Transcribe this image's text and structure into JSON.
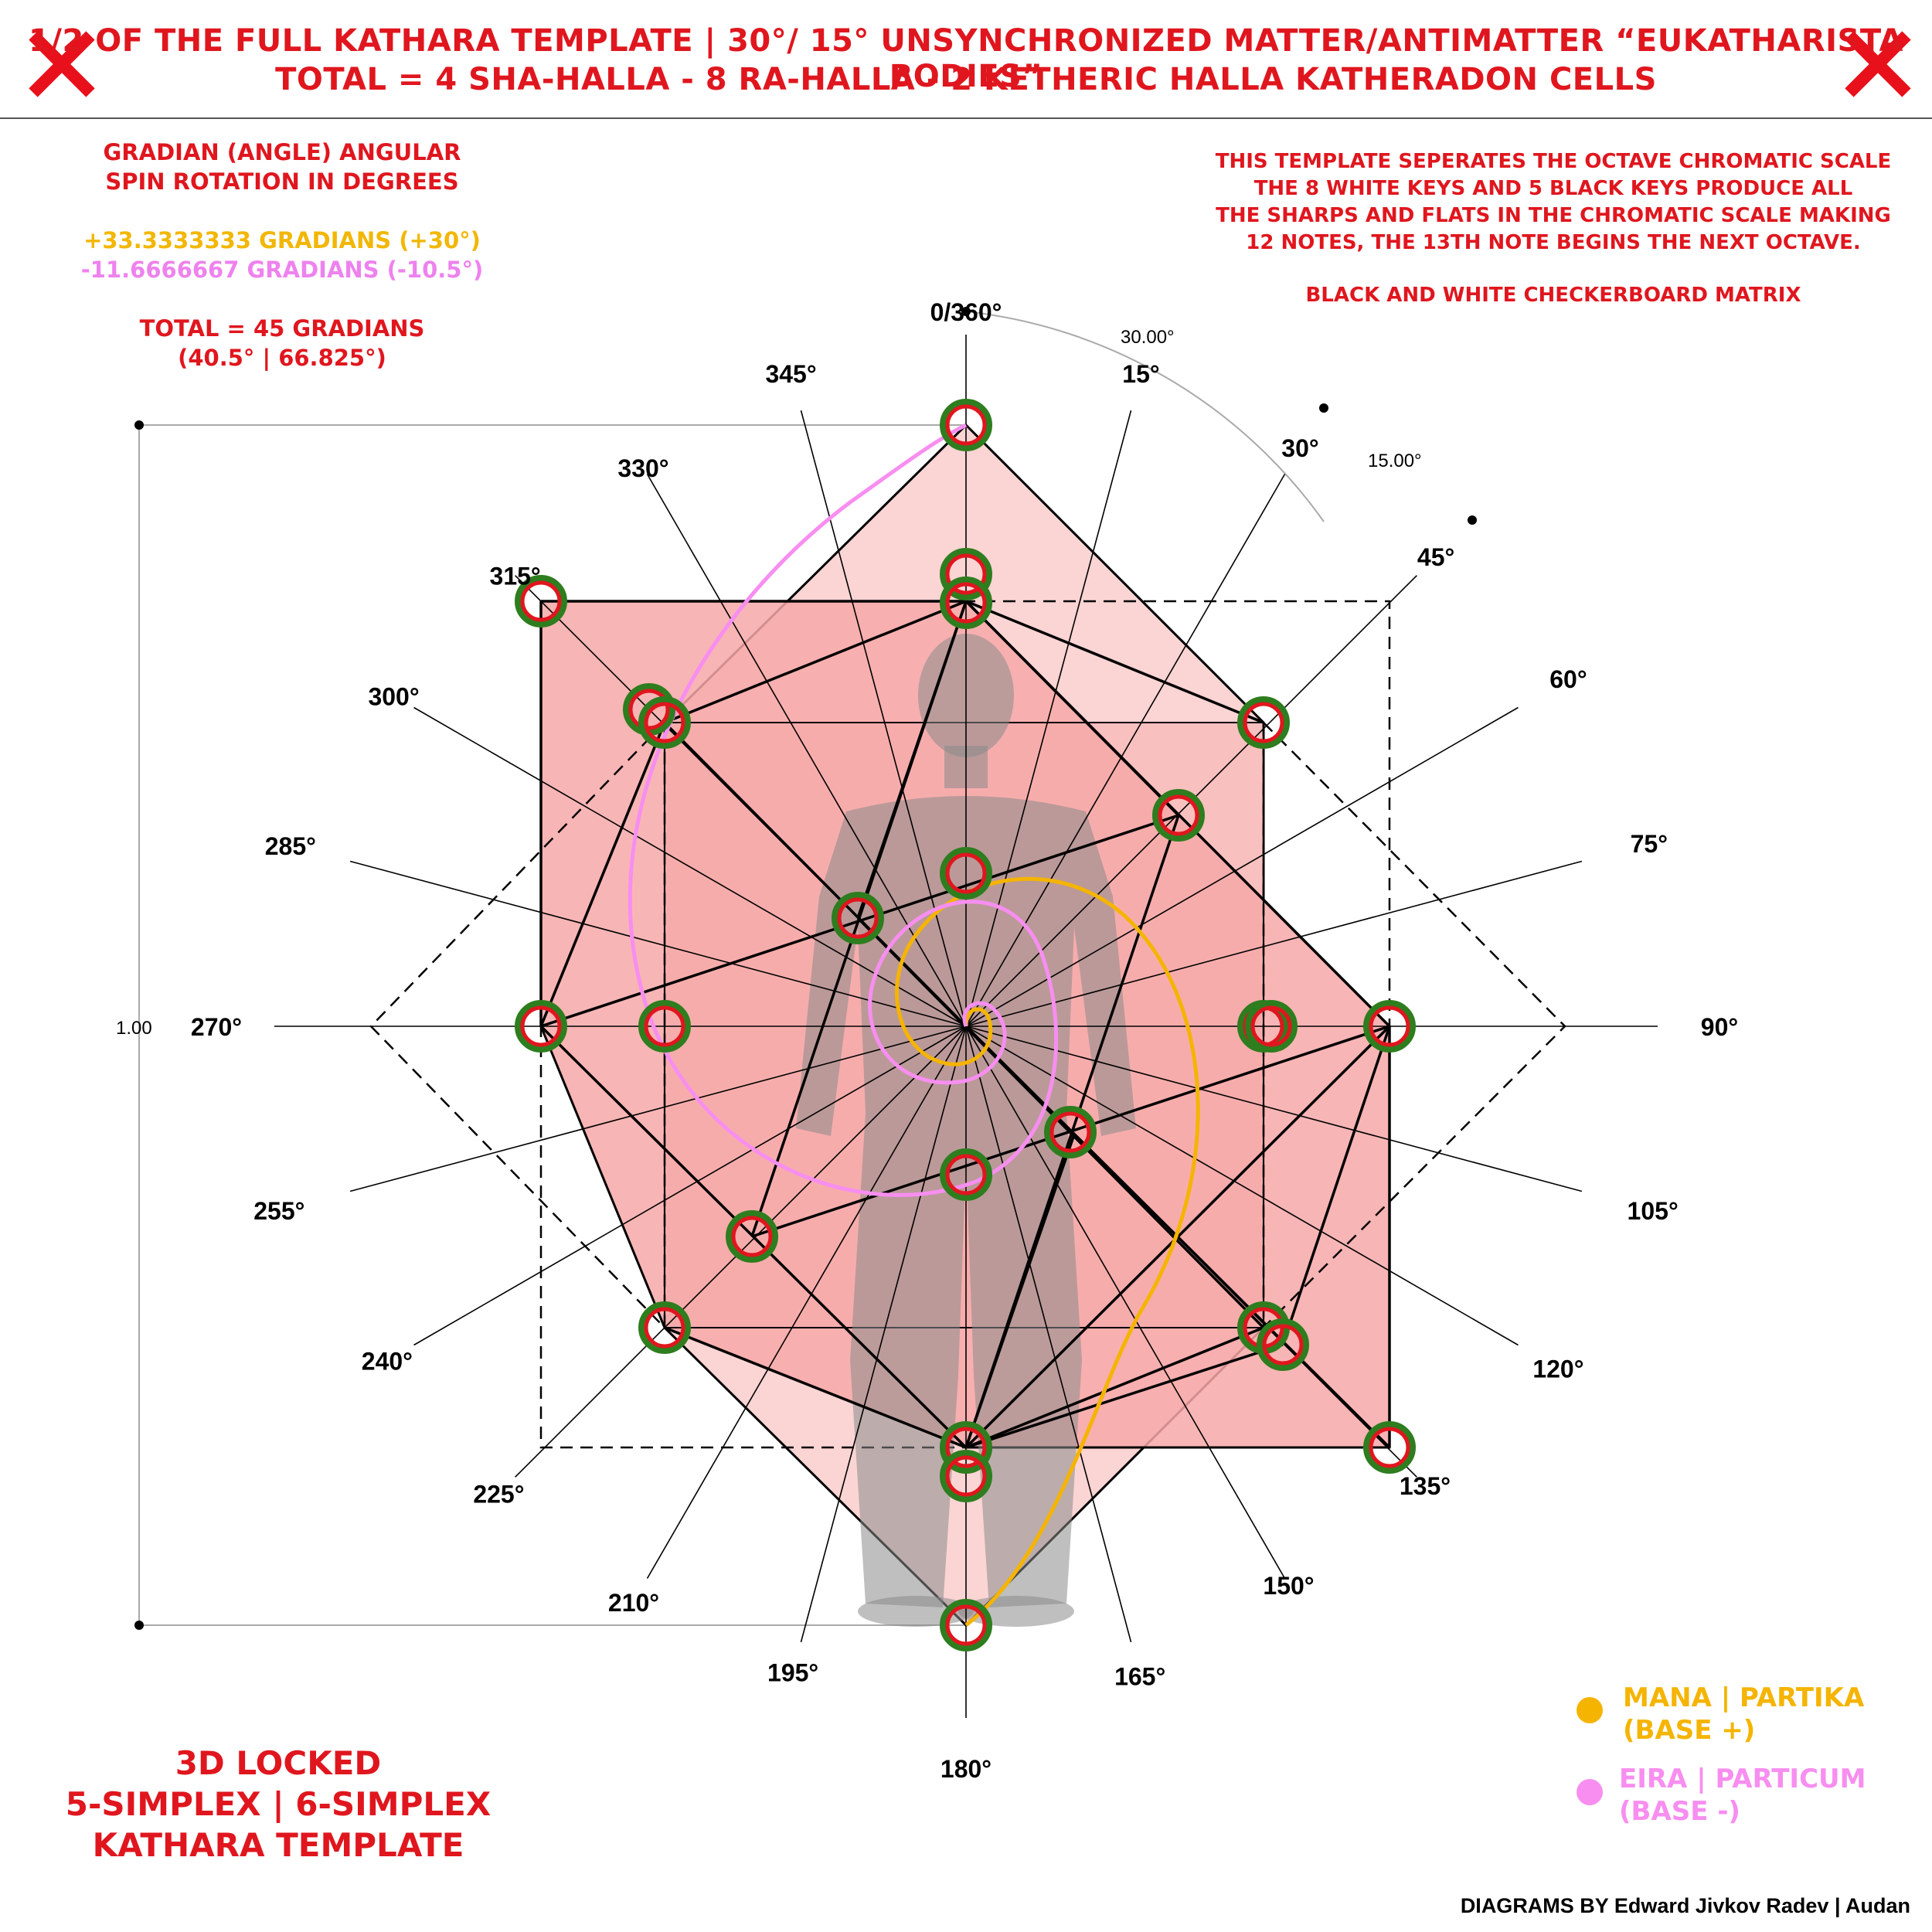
{
  "header": {
    "line1": "1/2 OF THE FULL KATHARA TEMPLATE | 30°/ 15° UNSYNCHRONIZED MATTER/ANTIMATTER “EUKATHARISTA BODIES”",
    "line2": "TOTAL = 4 SHA-HALLA - 8 RA-HALLA - 2 KETHERIC HALLA KATHERADON CELLS"
  },
  "left_note": {
    "line1": "GRADIAN (ANGLE) ANGULAR",
    "line2": "SPIN ROTATION IN DEGREES",
    "pos": "+33.3333333 GRADIANS (+30°)",
    "neg": "-11.6666667 GRADIANS (-10.5°)",
    "total1": "TOTAL = 45 GRADIANS",
    "total2": "(40.5° | 66.825°)"
  },
  "right_note": {
    "line1": "THIS TEMPLATE SEPERATES THE OCTAVE CHROMATIC SCALE",
    "line2": "THE 8 WHITE KEYS AND 5 BLACK KEYS PRODUCE ALL",
    "line3": "THE SHARPS AND FLATS IN THE CHROMATIC SCALE MAKING",
    "line4": "12 NOTES, THE 13TH NOTE BEGINS THE NEXT OCTAVE.",
    "line5": "BLACK AND WHITE CHECKERBOARD MATRIX"
  },
  "angle_labels": [
    "0/360°",
    "15°",
    "30°",
    "45°",
    "60°",
    "75°",
    "90°",
    "105°",
    "120°",
    "135°",
    "150°",
    "165°",
    "180°",
    "195°",
    "210°",
    "225°",
    "240°",
    "255°",
    "270°",
    "285°",
    "300°",
    "315°",
    "330°",
    "345°"
  ],
  "arc_labels": {
    "a30": "30.00°",
    "a15": "15.00°"
  },
  "scale_label": "1.00",
  "bottom_left": {
    "line1": "3D LOCKED",
    "line2": "5-SIMPLEX | 6-SIMPLEX",
    "line3": "KATHARA TEMPLATE"
  },
  "legend": {
    "mana1": "MANA | PARTIKA",
    "mana2": "(BASE +)",
    "eira1": "EIRA | PARTICUM",
    "eira2": "(BASE -)",
    "mana_color": "#f5b400",
    "eira_color": "#f78ef0"
  },
  "credit": "DIAGRAMS BY Edward Jivkov Radev | Audan",
  "colors": {
    "title_red": "#e0161e",
    "fill_light": "#fbd4d4",
    "fill_mid": "#f7a8a8",
    "node_green": "#2e7d1e",
    "node_red": "#e0161e"
  }
}
